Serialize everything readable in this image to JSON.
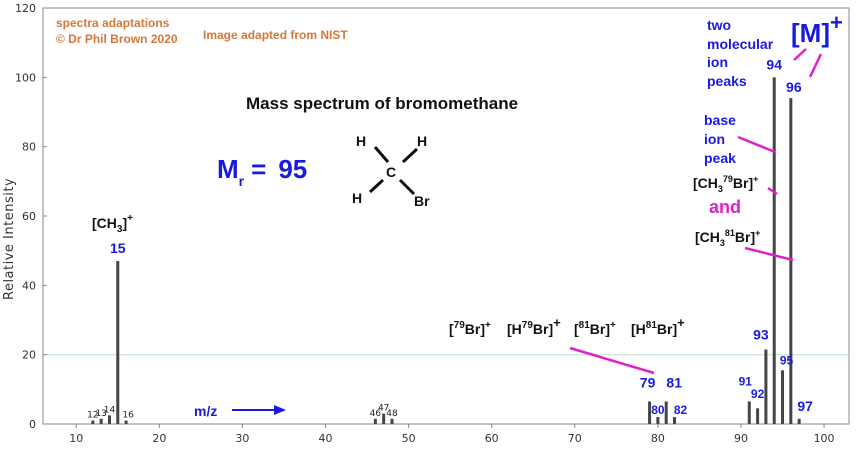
{
  "credits": {
    "line1": "spectra adaptations",
    "line2": "© Dr Phil Brown 2020",
    "nist": "Image adapted from NIST"
  },
  "annotations": {
    "title": "Mass spectrum of bromomethane",
    "mr_symbol": "M",
    "mr_sub": "r",
    "mr_eq": "=",
    "mr_value": "95",
    "structure": {
      "c": "C",
      "h1": "H",
      "h2": "H",
      "h3": "H",
      "br": "Br"
    },
    "mz": "m/z",
    "two_line1": "two",
    "two_line2": "molecular",
    "two_line3": "ion",
    "two_line4": "peaks",
    "M_plus": "[M]",
    "plus": "+",
    "base_line1": "base",
    "base_line2": "ion",
    "base_line3": "peak",
    "ion79_pre": "[CH",
    "ion79_sub": "3",
    "ion79_sup": "79",
    "ion79_post": "Br]",
    "and": "and",
    "ion81_pre": "[CH",
    "ion81_sub": "3",
    "ion81_sup": "81",
    "ion81_post": "Br]",
    "ch3_pre": "[CH",
    "ch3_sub": "3",
    "ch3_post": "]",
    "br79": "79",
    "br81": "81",
    "br_label": "Br]",
    "h_label": "[H",
    "open_bracket": "["
  },
  "chart_data": {
    "type": "bar",
    "title": "Mass spectrum of bromomethane",
    "xlabel": "m/z",
    "ylabel": "Relative Intensity",
    "xlim": [
      6,
      103
    ],
    "ylim": [
      0,
      120
    ],
    "xticks": [
      10,
      20,
      30,
      40,
      50,
      60,
      70,
      80,
      90,
      100
    ],
    "yticks": [
      0,
      20,
      40,
      60,
      80,
      100,
      120
    ],
    "grid": "horizontal at y=20",
    "peaks": [
      {
        "mz": 12,
        "intensity": 1,
        "label": "12"
      },
      {
        "mz": 13,
        "intensity": 1.5,
        "label": "13"
      },
      {
        "mz": 14,
        "intensity": 2.5,
        "label": "14"
      },
      {
        "mz": 15,
        "intensity": 47,
        "label": "15"
      },
      {
        "mz": 16,
        "intensity": 1,
        "label": "16"
      },
      {
        "mz": 46,
        "intensity": 1.5,
        "label": "46"
      },
      {
        "mz": 47,
        "intensity": 3,
        "label": "47"
      },
      {
        "mz": 48,
        "intensity": 1.5,
        "label": "48"
      },
      {
        "mz": 79,
        "intensity": 6.5,
        "label": "79"
      },
      {
        "mz": 80,
        "intensity": 2,
        "label": "80"
      },
      {
        "mz": 81,
        "intensity": 6.5,
        "label": "81"
      },
      {
        "mz": 82,
        "intensity": 2,
        "label": "82"
      },
      {
        "mz": 91,
        "intensity": 6.5,
        "label": "91"
      },
      {
        "mz": 92,
        "intensity": 4.5,
        "label": "92"
      },
      {
        "mz": 93,
        "intensity": 21.5,
        "label": "93"
      },
      {
        "mz": 94,
        "intensity": 100,
        "label": "94"
      },
      {
        "mz": 95,
        "intensity": 15.5,
        "label": "95"
      },
      {
        "mz": 96,
        "intensity": 94,
        "label": "96"
      },
      {
        "mz": 97,
        "intensity": 1.5,
        "label": "97"
      }
    ]
  },
  "colors": {
    "bar": "#444444",
    "axis_label_blue": "#1a1adf",
    "credit": "#d4783c",
    "magenta": "#e020c8",
    "grid": "#bfe0bf"
  }
}
